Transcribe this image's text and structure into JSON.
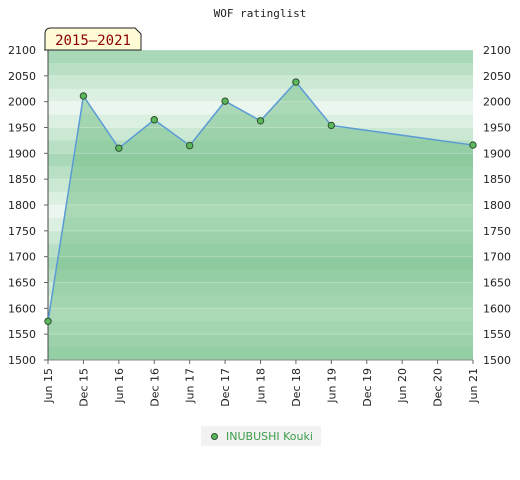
{
  "chart_data": {
    "type": "line",
    "title": "WOF ratinglist",
    "period_label": "2015–2021",
    "x": [
      "Jun 15",
      "Dec 15",
      "Jun 16",
      "Dec 16",
      "Jun 17",
      "Dec 17",
      "Jun 18",
      "Dec 18",
      "Jun 19",
      "Dec 19",
      "Jun 20",
      "Dec 20",
      "Jun 21"
    ],
    "series": [
      {
        "name": "INUBUSHI Kouki",
        "points": [
          {
            "x": "Jun 15",
            "y": 1575
          },
          {
            "x": "Dec 15",
            "y": 2011
          },
          {
            "x": "Jun 16",
            "y": 1910
          },
          {
            "x": "Dec 16",
            "y": 1965
          },
          {
            "x": "Jun 17",
            "y": 1915
          },
          {
            "x": "Dec 17",
            "y": 2001
          },
          {
            "x": "Jun 18",
            "y": 1963
          },
          {
            "x": "Dec 18",
            "y": 2038
          },
          {
            "x": "Jun 19",
            "y": 1954
          },
          {
            "x": "Jun 21",
            "y": 1916
          }
        ]
      }
    ],
    "ylim": [
      1500,
      2100
    ],
    "yticks": [
      1500,
      1550,
      1600,
      1650,
      1700,
      1750,
      1800,
      1850,
      1900,
      1950,
      2000,
      2050,
      2100
    ],
    "y_axis_sides": "left and right",
    "legend_position": "bottom",
    "colors": {
      "line": "#5b9bd5",
      "marker": "#5cb85c",
      "marker_border": "#2f4f2f",
      "fill": "#77c08b",
      "legend_text": "#3c9c4a",
      "band_dark": "#a8d8b7",
      "band_light": "#ebf6ee"
    }
  }
}
